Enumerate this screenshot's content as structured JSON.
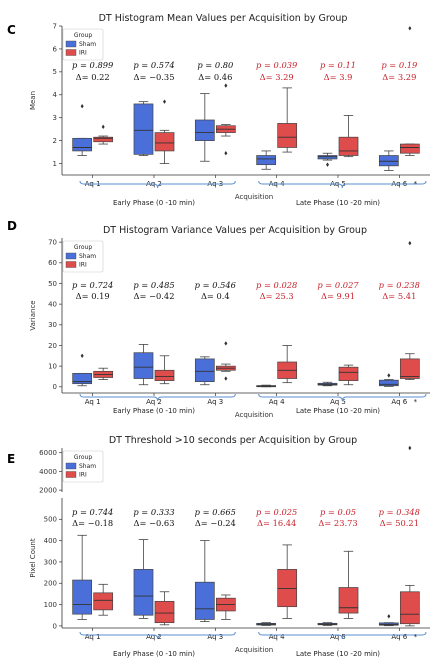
{
  "colors": {
    "sham": "#4a6fd8",
    "iri": "#de4c4c",
    "sig": "#c8232c",
    "ns": "#111111",
    "brace": "#5b8fd0"
  },
  "chart_data": [
    {
      "type": "box",
      "panel": "C",
      "title": "DT Histogram Mean Values per Acquisition by Group",
      "xlabel": "Acquisition",
      "ylabel": "Mean",
      "ylim": [
        0.5,
        7
      ],
      "yticks": [
        1,
        2,
        3,
        4,
        5,
        6,
        7
      ],
      "ytick_labels": [
        "1",
        "2",
        "3",
        "4",
        "5",
        "6",
        "7"
      ],
      "legend": {
        "title": "Group",
        "position": "top-left",
        "entries": [
          "Sham",
          "IRI"
        ]
      },
      "categories": [
        "Aq 1",
        "Aq 2",
        "Aq 3",
        "Aq 4",
        "Aq 5",
        "Aq 6"
      ],
      "phases": [
        "Early Phase (0 -10 min)",
        "Late Phase (10 -20 min)"
      ],
      "series": [
        {
          "name": "Sham",
          "boxes": [
            {
              "min": 1.35,
              "q1": 1.55,
              "median": 1.7,
              "q3": 2.1,
              "max": 2.1,
              "outliers": [
                3.5
              ]
            },
            {
              "min": 1.35,
              "q1": 1.4,
              "median": 2.45,
              "q3": 3.6,
              "max": 3.7,
              "outliers": []
            },
            {
              "min": 1.1,
              "q1": 2.0,
              "median": 2.35,
              "q3": 2.9,
              "max": 4.05,
              "outliers": []
            },
            {
              "min": 0.75,
              "q1": 0.95,
              "median": 1.2,
              "q3": 1.35,
              "max": 1.55,
              "outliers": []
            },
            {
              "min": 1.15,
              "q1": 1.2,
              "median": 1.3,
              "q3": 1.35,
              "max": 1.45,
              "outliers": [
                0.95
              ]
            },
            {
              "min": 0.7,
              "q1": 0.9,
              "median": 1.1,
              "q3": 1.35,
              "max": 1.55,
              "outliers": []
            }
          ]
        },
        {
          "name": "IRI",
          "boxes": [
            {
              "min": 1.85,
              "q1": 1.95,
              "median": 2.1,
              "q3": 2.15,
              "max": 2.2,
              "outliers": [
                2.6
              ]
            },
            {
              "min": 1.0,
              "q1": 1.55,
              "median": 1.9,
              "q3": 2.35,
              "max": 2.45,
              "outliers": [
                3.7
              ]
            },
            {
              "min": 2.2,
              "q1": 2.35,
              "median": 2.5,
              "q3": 2.65,
              "max": 2.7,
              "outliers": [
                4.4,
                1.45
              ]
            },
            {
              "min": 1.5,
              "q1": 1.7,
              "median": 2.15,
              "q3": 2.75,
              "max": 4.3,
              "outliers": []
            },
            {
              "min": 1.3,
              "q1": 1.35,
              "median": 1.55,
              "q3": 2.15,
              "max": 3.1,
              "outliers": []
            },
            {
              "min": 1.35,
              "q1": 1.45,
              "median": 1.7,
              "q3": 1.85,
              "max": 1.85,
              "outliers": [
                6.9
              ]
            }
          ]
        }
      ],
      "stats": [
        {
          "p": "p = 0.899",
          "d": "Δ= 0.22",
          "sig": false
        },
        {
          "p": "p = 0.574",
          "d": "Δ= −0.35",
          "sig": false
        },
        {
          "p": "p = 0.80",
          "d": "Δ= 0.46",
          "sig": false
        },
        {
          "p": "p = 0.039",
          "d": "Δ= 3.29",
          "sig": true
        },
        {
          "p": "p = 0.11",
          "d": "Δ= 3.9",
          "sig": true
        },
        {
          "p": "p = 0.19",
          "d": "Δ= 3.29",
          "sig": true
        }
      ]
    },
    {
      "type": "box",
      "panel": "D",
      "title": "DT Histogram Variance Values per Acquisition by Group",
      "xlabel": "Acquisition",
      "ylabel": "Variance",
      "ylim": [
        -3,
        72
      ],
      "yticks": [
        0,
        10,
        20,
        30,
        40,
        50,
        60,
        70
      ],
      "ytick_labels": [
        "0",
        "10",
        "20",
        "30",
        "40",
        "50",
        "60",
        "70"
      ],
      "legend": {
        "title": "Group",
        "position": "top-left",
        "entries": [
          "Sham",
          "IRI"
        ]
      },
      "categories": [
        "Aq 1",
        "Aq 2",
        "Aq 3",
        "Aq 4",
        "Aq 5",
        "Aq 6"
      ],
      "phases": [
        "Early Phase (0 -10 min)",
        "Late Phase (10 -20 min)"
      ],
      "series": [
        {
          "name": "Sham",
          "boxes": [
            {
              "min": 0.5,
              "q1": 1.5,
              "median": 2.5,
              "q3": 6.5,
              "max": 6.5,
              "outliers": [
                15
              ]
            },
            {
              "min": 1,
              "q1": 4,
              "median": 9.5,
              "q3": 16.5,
              "max": 20.5,
              "outliers": []
            },
            {
              "min": 1,
              "q1": 2.5,
              "median": 7.5,
              "q3": 13.5,
              "max": 14.5,
              "outliers": []
            },
            {
              "min": 0,
              "q1": 0.1,
              "median": 0.3,
              "q3": 0.6,
              "max": 0.8,
              "outliers": []
            },
            {
              "min": 0.5,
              "q1": 0.8,
              "median": 1.2,
              "q3": 1.7,
              "max": 2.2,
              "outliers": []
            },
            {
              "min": 0.2,
              "q1": 0.5,
              "median": 1.2,
              "q3": 3.2,
              "max": 3.5,
              "outliers": [
                5.5
              ]
            }
          ]
        },
        {
          "name": "IRI",
          "boxes": [
            {
              "min": 3.5,
              "q1": 4.5,
              "median": 6,
              "q3": 7.5,
              "max": 9,
              "outliers": []
            },
            {
              "min": 1.5,
              "q1": 3,
              "median": 5,
              "q3": 8,
              "max": 15,
              "outliers": []
            },
            {
              "min": 7.5,
              "q1": 8,
              "median": 9,
              "q3": 10,
              "max": 11,
              "outliers": [
                21,
                4
              ]
            },
            {
              "min": 2,
              "q1": 4,
              "median": 8,
              "q3": 12,
              "max": 20,
              "outliers": []
            },
            {
              "min": 1,
              "q1": 3,
              "median": 7,
              "q3": 9.5,
              "max": 10.5,
              "outliers": []
            },
            {
              "min": 3.5,
              "q1": 4,
              "median": 5,
              "q3": 13.5,
              "max": 16,
              "outliers": [
                69.5
              ]
            }
          ]
        }
      ],
      "stats": [
        {
          "p": "p = 0.724",
          "d": "Δ= 0.19",
          "sig": false
        },
        {
          "p": "p = 0.485",
          "d": "Δ= −0.42",
          "sig": false
        },
        {
          "p": "p = 0.546",
          "d": "Δ= 0.4",
          "sig": false
        },
        {
          "p": "p = 0.028",
          "d": "Δ= 25.3",
          "sig": true
        },
        {
          "p": "p = 0.027",
          "d": "Δ= 9.91",
          "sig": true
        },
        {
          "p": "p = 0.238",
          "d": "Δ= 5.41",
          "sig": true
        }
      ]
    },
    {
      "type": "box",
      "panel": "E",
      "title": "DT Threshold >10 seconds per Acquisition by Group",
      "xlabel": "Acquisition",
      "ylabel": "Pixel Count",
      "broken_axis": true,
      "ylim_lower": [
        -10,
        600
      ],
      "ylim_upper": [
        1800,
        6500
      ],
      "yticks_lower": [
        0,
        100,
        200,
        300,
        400,
        500
      ],
      "yticks_upper": [
        2000,
        4000,
        6000
      ],
      "ytick_labels_lower": [
        "0",
        "100",
        "200",
        "300",
        "400",
        "500"
      ],
      "ytick_labels_upper": [
        "2000",
        "4000",
        "6000"
      ],
      "legend": {
        "title": "Group",
        "position": "top-left",
        "entries": [
          "Sham",
          "IRI"
        ]
      },
      "categories": [
        "Aq 1",
        "Aq 2",
        "Aq 3",
        "Aq 4",
        "Aq 5",
        "Aq 6"
      ],
      "phases": [
        "Early Phase (0 -10 min)",
        "Late Phase (10 -20 min)"
      ],
      "series": [
        {
          "name": "Sham",
          "boxes": [
            {
              "min": 30,
              "q1": 55,
              "median": 100,
              "q3": 215,
              "max": 425,
              "outliers": []
            },
            {
              "min": 35,
              "q1": 50,
              "median": 140,
              "q3": 265,
              "max": 405,
              "outliers": []
            },
            {
              "min": 20,
              "q1": 30,
              "median": 80,
              "q3": 205,
              "max": 400,
              "outliers": []
            },
            {
              "min": 2,
              "q1": 4,
              "median": 8,
              "q3": 12,
              "max": 15,
              "outliers": []
            },
            {
              "min": 2,
              "q1": 5,
              "median": 8,
              "q3": 12,
              "max": 15,
              "outliers": []
            },
            {
              "min": 1,
              "q1": 3,
              "median": 7,
              "q3": 14,
              "max": 15,
              "outliers": [
                45
              ]
            }
          ]
        },
        {
          "name": "IRI",
          "boxes": [
            {
              "min": 50,
              "q1": 75,
              "median": 120,
              "q3": 155,
              "max": 195,
              "outliers": []
            },
            {
              "min": 5,
              "q1": 15,
              "median": 60,
              "q3": 115,
              "max": 160,
              "outliers": []
            },
            {
              "min": 30,
              "q1": 70,
              "median": 100,
              "q3": 130,
              "max": 145,
              "outliers": []
            },
            {
              "min": 35,
              "q1": 90,
              "median": 175,
              "q3": 265,
              "max": 380,
              "outliers": []
            },
            {
              "min": 35,
              "q1": 60,
              "median": 85,
              "q3": 180,
              "max": 350,
              "outliers": []
            },
            {
              "min": 0,
              "q1": 10,
              "median": 55,
              "q3": 160,
              "max": 190,
              "outliers": [
                6500
              ]
            }
          ]
        }
      ],
      "stats": [
        {
          "p": "p = 0.744",
          "d": "Δ= −0.18",
          "sig": false
        },
        {
          "p": "p = 0.333",
          "d": "Δ= −0.63",
          "sig": false
        },
        {
          "p": "p = 0.665",
          "d": "Δ= −0.24",
          "sig": false
        },
        {
          "p": "p = 0.025",
          "d": "Δ= 16.44",
          "sig": true
        },
        {
          "p": "p = 0.05",
          "d": "Δ= 23.73",
          "sig": true
        },
        {
          "p": "p = 0.348",
          "d": "Δ= 50.21",
          "sig": true
        }
      ]
    }
  ]
}
